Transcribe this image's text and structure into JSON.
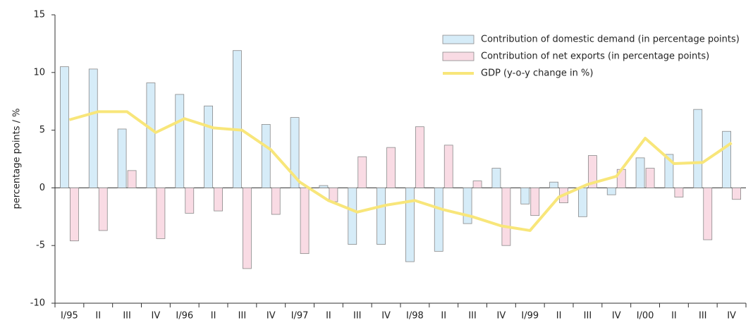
{
  "chart_data": {
    "type": "bar-line",
    "ylabel": "percentage points / %",
    "categories": [
      "I/95",
      "II",
      "III",
      "IV",
      "I/96",
      "II",
      "III",
      "IV",
      "I/97",
      "II",
      "III",
      "IV",
      "I/98",
      "II",
      "III",
      "IV",
      "I/99",
      "II",
      "III",
      "IV",
      "I/00",
      "II",
      "III",
      "IV"
    ],
    "series": [
      {
        "name": "Contribution of domestic demand (in percentage points)",
        "type": "bar",
        "color": "#d6ecf8",
        "values": [
          10.5,
          10.3,
          5.1,
          9.1,
          8.1,
          7.1,
          11.9,
          5.5,
          6.1,
          0.2,
          -4.9,
          -4.9,
          -6.4,
          -5.5,
          -3.1,
          1.7,
          -1.4,
          0.5,
          -2.5,
          -0.6,
          2.6,
          2.9,
          6.8,
          4.9
        ]
      },
      {
        "name": "Contribution of net exports (in percentage points)",
        "type": "bar",
        "color": "#f9dbe4",
        "values": [
          -4.6,
          -3.7,
          1.5,
          -4.4,
          -2.2,
          -2.0,
          -7.0,
          -2.3,
          -5.7,
          -1.2,
          2.7,
          3.5,
          5.3,
          3.7,
          0.6,
          -5.0,
          -2.4,
          -1.3,
          2.8,
          1.6,
          1.7,
          -0.8,
          -4.5,
          -1.0
        ]
      },
      {
        "name": "GDP (y-o-y change in %)",
        "type": "line",
        "color": "#f8e67a",
        "values": [
          5.9,
          6.6,
          6.6,
          4.8,
          6.0,
          5.2,
          5.0,
          3.3,
          0.5,
          -1.1,
          -2.1,
          -1.5,
          -1.1,
          -1.9,
          -2.5,
          -3.3,
          -3.7,
          -0.8,
          0.3,
          1.0,
          4.3,
          2.1,
          2.2,
          3.9
        ]
      }
    ],
    "ylim": [
      -10,
      15
    ],
    "yticks": [
      -10,
      -5,
      0,
      5,
      10,
      15
    ],
    "legend": "upper right"
  }
}
